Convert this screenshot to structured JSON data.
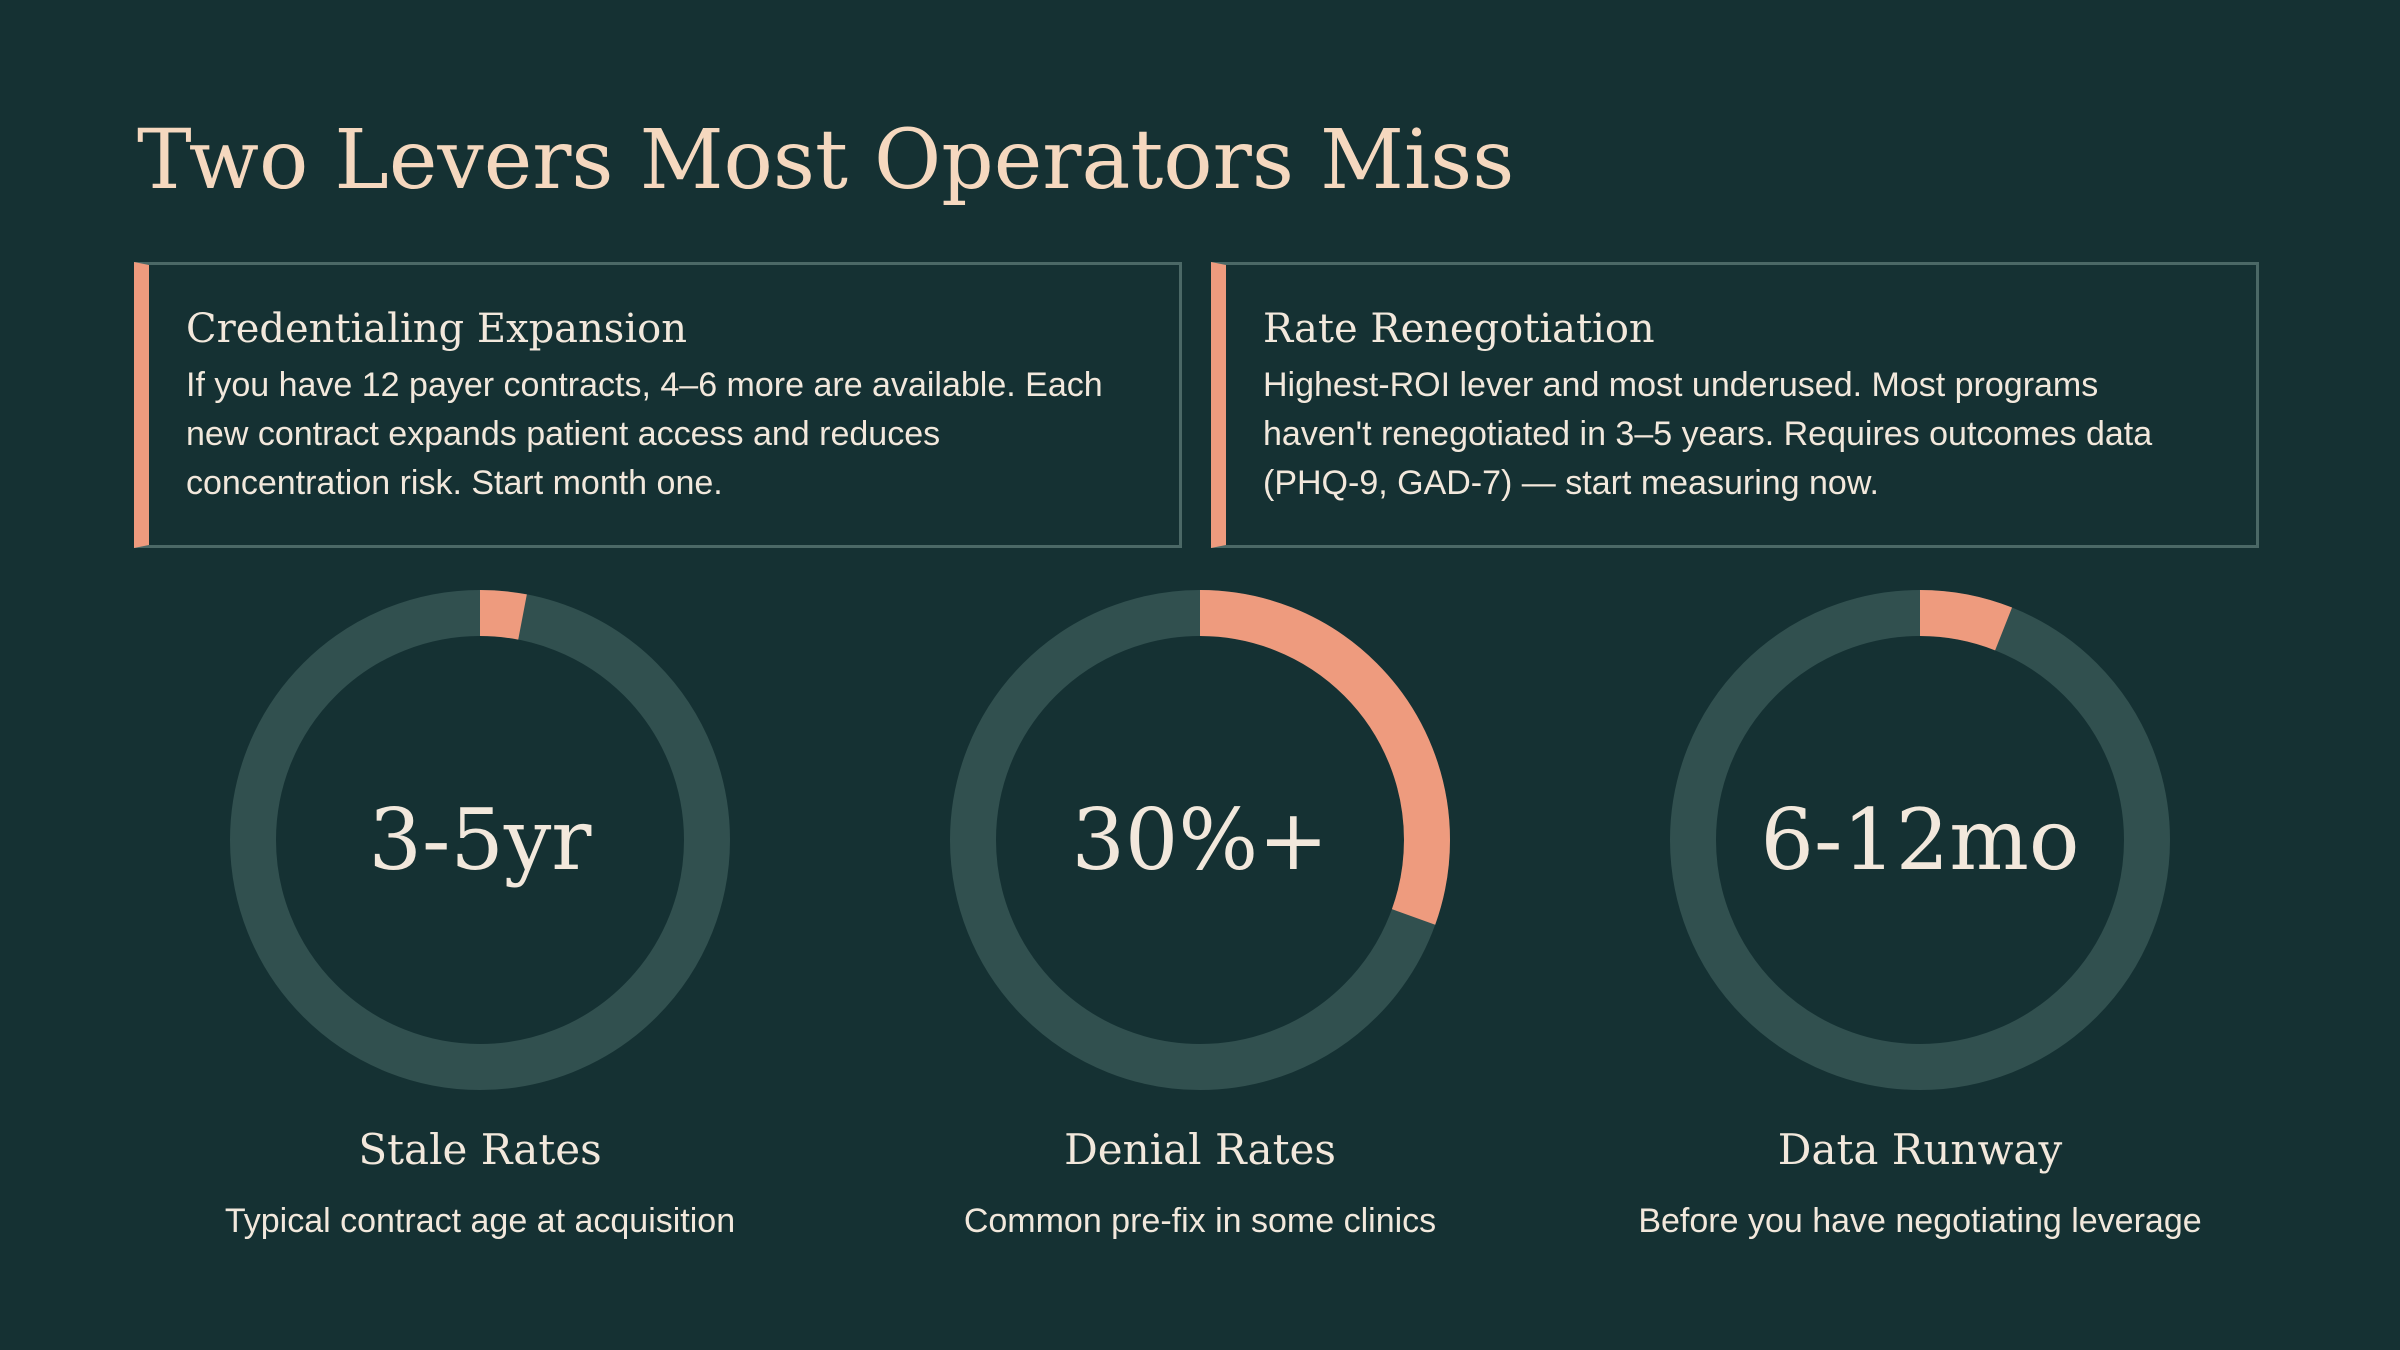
{
  "title": "Two Levers Most Operators Miss",
  "cards": [
    {
      "heading": "Credentialing Expansion",
      "body": "If you have 12 payer contracts, 4–6 more are available. Each new contract expands patient access and reduces concentration risk. Start month one."
    },
    {
      "heading": "Rate Renegotiation",
      "body": "Highest-ROI lever and most underused. Most programs haven't renegotiated in 3–5 years. Requires outcomes data (PHQ-9, GAD-7) — start measuring now."
    }
  ],
  "stats": [
    {
      "value": "3-5yr",
      "label": "Stale Rates",
      "sublabel": "Typical contract age at acquisition",
      "fill_fraction": 0.03
    },
    {
      "value": "30%+",
      "label": "Denial Rates",
      "sublabel": "Common pre-fix in some clinics",
      "fill_fraction": 0.305
    },
    {
      "value": "6-12mo",
      "label": "Data Runway",
      "sublabel": "Before you have negotiating leverage",
      "fill_fraction": 0.06
    }
  ],
  "colors": {
    "background": "#153133",
    "title": "#F5D8BF",
    "accent": "#EE9B7E",
    "ring_track": "#31504F",
    "card_border": "#4B6866",
    "text": "#F2E8DC"
  }
}
